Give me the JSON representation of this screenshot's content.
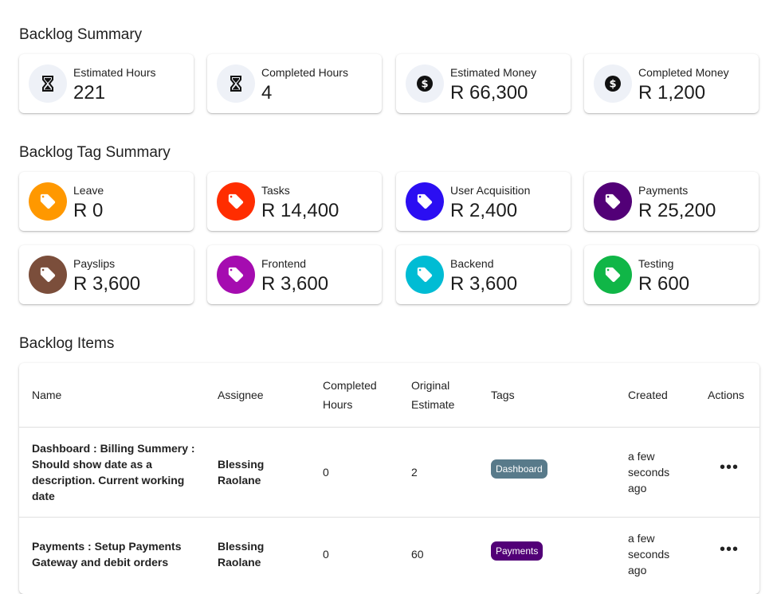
{
  "summary": {
    "title": "Backlog Summary",
    "cards": [
      {
        "label": "Estimated Hours",
        "value": "221",
        "icon": "hourglass-icon"
      },
      {
        "label": "Completed Hours",
        "value": "4",
        "icon": "hourglass-icon"
      },
      {
        "label": "Estimated Money",
        "value": "R 66,300",
        "icon": "dollar-icon"
      },
      {
        "label": "Completed Money",
        "value": "R 1,200",
        "icon": "dollar-icon"
      }
    ]
  },
  "tag_summary": {
    "title": "Backlog Tag Summary",
    "cards": [
      {
        "label": "Leave",
        "value": "R 0",
        "color": "#ff9800"
      },
      {
        "label": "Tasks",
        "value": "R 14,400",
        "color": "#ff2d00"
      },
      {
        "label": "User Acquisition",
        "value": "R 2,400",
        "color": "#2b0ef2"
      },
      {
        "label": "Payments",
        "value": "R 25,200",
        "color": "#520077"
      },
      {
        "label": "Payslips",
        "value": "R 3,600",
        "color": "#7b4e3b"
      },
      {
        "label": "Frontend",
        "value": "R 3,600",
        "color": "#a50cb0"
      },
      {
        "label": "Backend",
        "value": "R 3,600",
        "color": "#00bcd4"
      },
      {
        "label": "Testing",
        "value": "R 600",
        "color": "#10b647"
      }
    ]
  },
  "items": {
    "title": "Backlog Items",
    "headers": {
      "name": "Name",
      "assignee": "Assignee",
      "completed_1": "Completed",
      "completed_2": "Hours",
      "original_1": "Original",
      "original_2": "Estimate",
      "tags": "Tags",
      "created": "Created",
      "actions": "Actions"
    },
    "rows": [
      {
        "name_lines": [
          "Dashboard : Billing Summery :",
          "Should show date as a",
          "description. Current working",
          "date"
        ],
        "assignee_lines": [
          "Blessing",
          "Raolane"
        ],
        "completed": "0",
        "original": "2",
        "tag": "Dashboard",
        "tag_color": "#587a8a",
        "created_lines": [
          "a few",
          "seconds",
          "ago"
        ],
        "actions": "•••"
      },
      {
        "name_lines": [
          "Payments : Setup Payments",
          "Gateway and debit orders"
        ],
        "assignee_lines": [
          "Blessing",
          "Raolane"
        ],
        "completed": "0",
        "original": "60",
        "tag": "Payments",
        "tag_color": "#520077",
        "created_lines": [
          "a few",
          "seconds",
          "ago"
        ],
        "actions": "•••"
      }
    ]
  }
}
